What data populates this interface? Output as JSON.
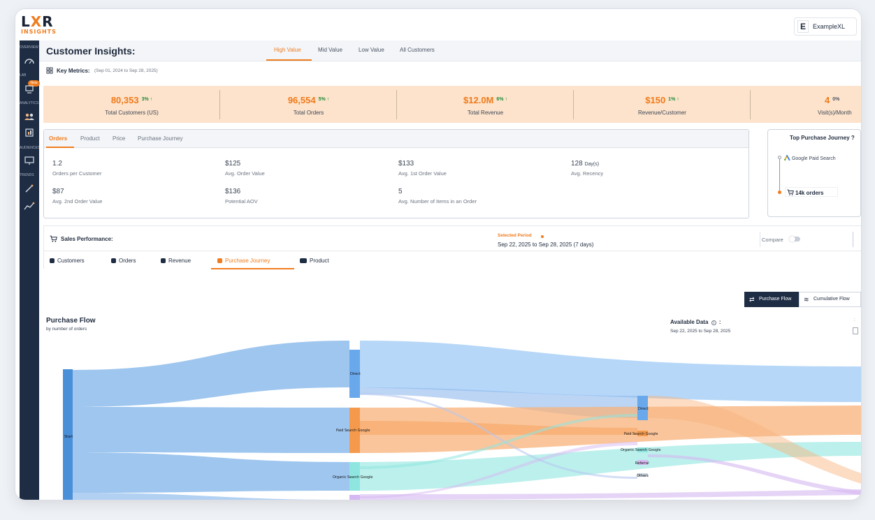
{
  "app": {
    "logo_main": "LXR",
    "logo_sub": "INSIGHTS",
    "account_initial": "E",
    "account_name": "ExampleXL"
  },
  "sidebar": {
    "labels": [
      "OVERVIEW",
      "LAB",
      "ANALYTICS",
      "AUDIENCES",
      "TRENDS"
    ],
    "new_badge": "New",
    "icons": [
      "dashboard-icon",
      "lab-icon",
      "users-icon",
      "report-icon",
      "monitor-icon",
      "wand-icon",
      "trend-icon"
    ]
  },
  "header": {
    "title": "Customer Insights:",
    "tabs": [
      "High Value",
      "Mid Value",
      "Low Value",
      "All Customers"
    ],
    "active_tab": "High Value"
  },
  "key_metrics": {
    "label": "Key Metrics:",
    "range": "(Sep 01, 2024 to Sep 28, 2025)"
  },
  "kpis": [
    {
      "value": "80,353",
      "change": "3%",
      "arrow": "↑",
      "label": "Total Customers (US)"
    },
    {
      "value": "96,554",
      "change": "5%",
      "arrow": "↑",
      "label": "Total Orders"
    },
    {
      "value": "$12.0M",
      "change": "6%",
      "arrow": "↑",
      "label": "Total Revenue"
    },
    {
      "value": "$150",
      "change": "1%",
      "arrow": "↑",
      "label": "Revenue/Customer"
    },
    {
      "value": "4",
      "change": "0%",
      "arrow": "",
      "label": "Visit(s)/Month"
    }
  ],
  "orders_card": {
    "tabs": [
      "Orders",
      "Product",
      "Price",
      "Purchase Journey"
    ],
    "active_tab": "Orders",
    "metrics": [
      {
        "value": "1.2",
        "unit": "",
        "label": "Orders per Customer"
      },
      {
        "value": "$125",
        "unit": "",
        "label": "Avg. Order Value"
      },
      {
        "value": "$133",
        "unit": "",
        "label": "Avg. 1st Order Value"
      },
      {
        "value": "128",
        "unit": "Day(s)",
        "label": "Avg. Recency"
      },
      {
        "value": "$87",
        "unit": "",
        "label": "Avg. 2nd Order Value"
      },
      {
        "value": "$136",
        "unit": "",
        "label": "Potential AOV"
      },
      {
        "value": "5",
        "unit": "",
        "label": "Avg. Number of Items in an Order"
      }
    ]
  },
  "top_journey": {
    "title": "Top Purchase Journey ?",
    "source": "Google Paid Search",
    "orders": "14k orders"
  },
  "sales": {
    "title": "Sales Performance:",
    "selected_period_label": "Selected Period",
    "selected_period_value": "Sep 22, 2025 to Sep 28, 2025 (7 days)",
    "compare_label": "Compare",
    "tabs": [
      "Customers",
      "Orders",
      "Revenue",
      "Purchase Journey",
      "Product"
    ],
    "active_tab": "Purchase Journey"
  },
  "flow": {
    "toggle_primary": "Purchase Flow",
    "toggle_secondary": "Cumulative Flow",
    "title": "Purchase Flow",
    "subtitle": "by number of orders",
    "available_label": "Available Data",
    "available_colon": ":",
    "available_range": "Sep 22, 2025 to Sep 28, 2025",
    "nodes": {
      "start": "Start",
      "level1": [
        "Direct",
        "Paid Search Google",
        "Organic Search Google"
      ],
      "level2": [
        "Direct",
        "Paid Search Google",
        "Organic Search Google",
        "Referral",
        "Others"
      ]
    },
    "colors": {
      "direct": "#7fb3ea",
      "paid": "#f6a25f",
      "organic": "#8fe6e0",
      "other": "#d6b8f2",
      "start": "#4a90d9"
    }
  }
}
